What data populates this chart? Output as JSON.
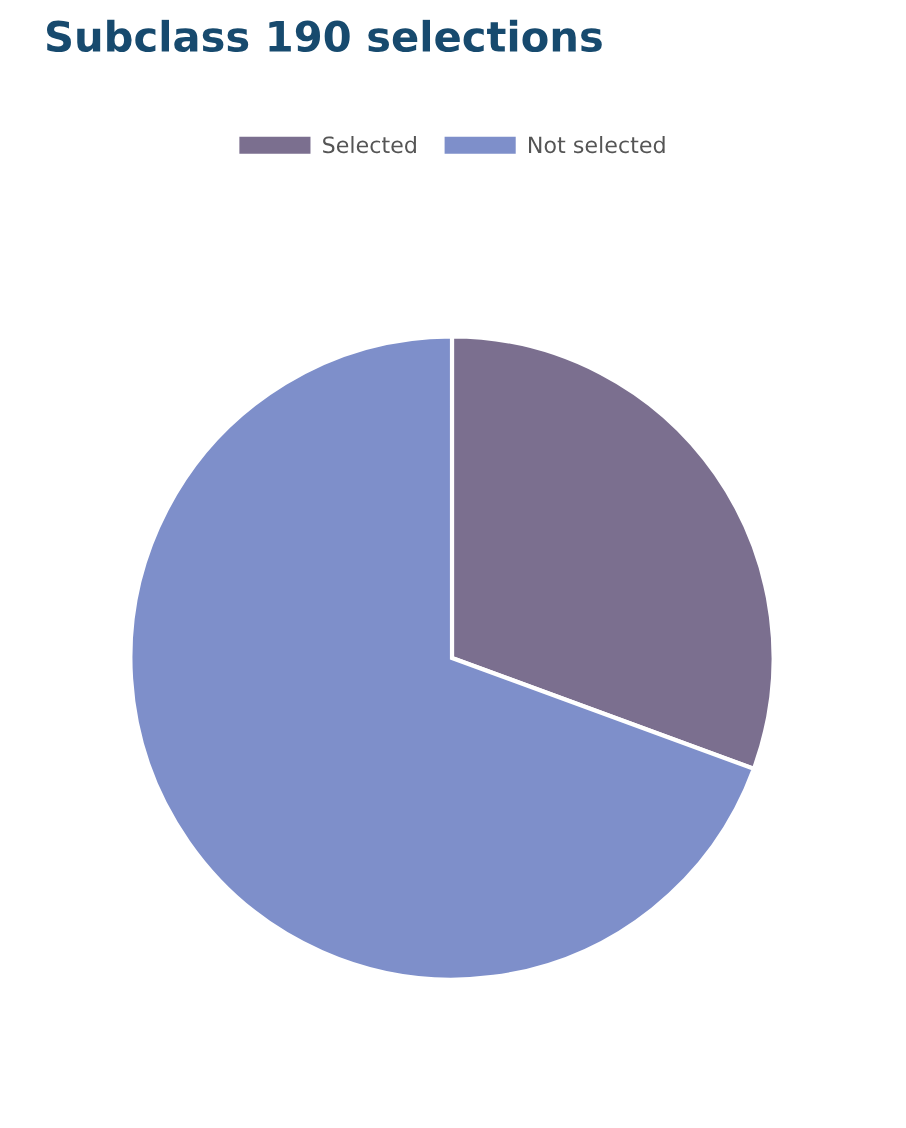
{
  "chart_data": {
    "type": "pie",
    "title": "Subclass 190 selections",
    "categories": [
      "Selected",
      "Not selected"
    ],
    "values": [
      30.6,
      69.4
    ],
    "colors": [
      "#7b6f8f",
      "#7e8fca"
    ],
    "legend": "top"
  }
}
